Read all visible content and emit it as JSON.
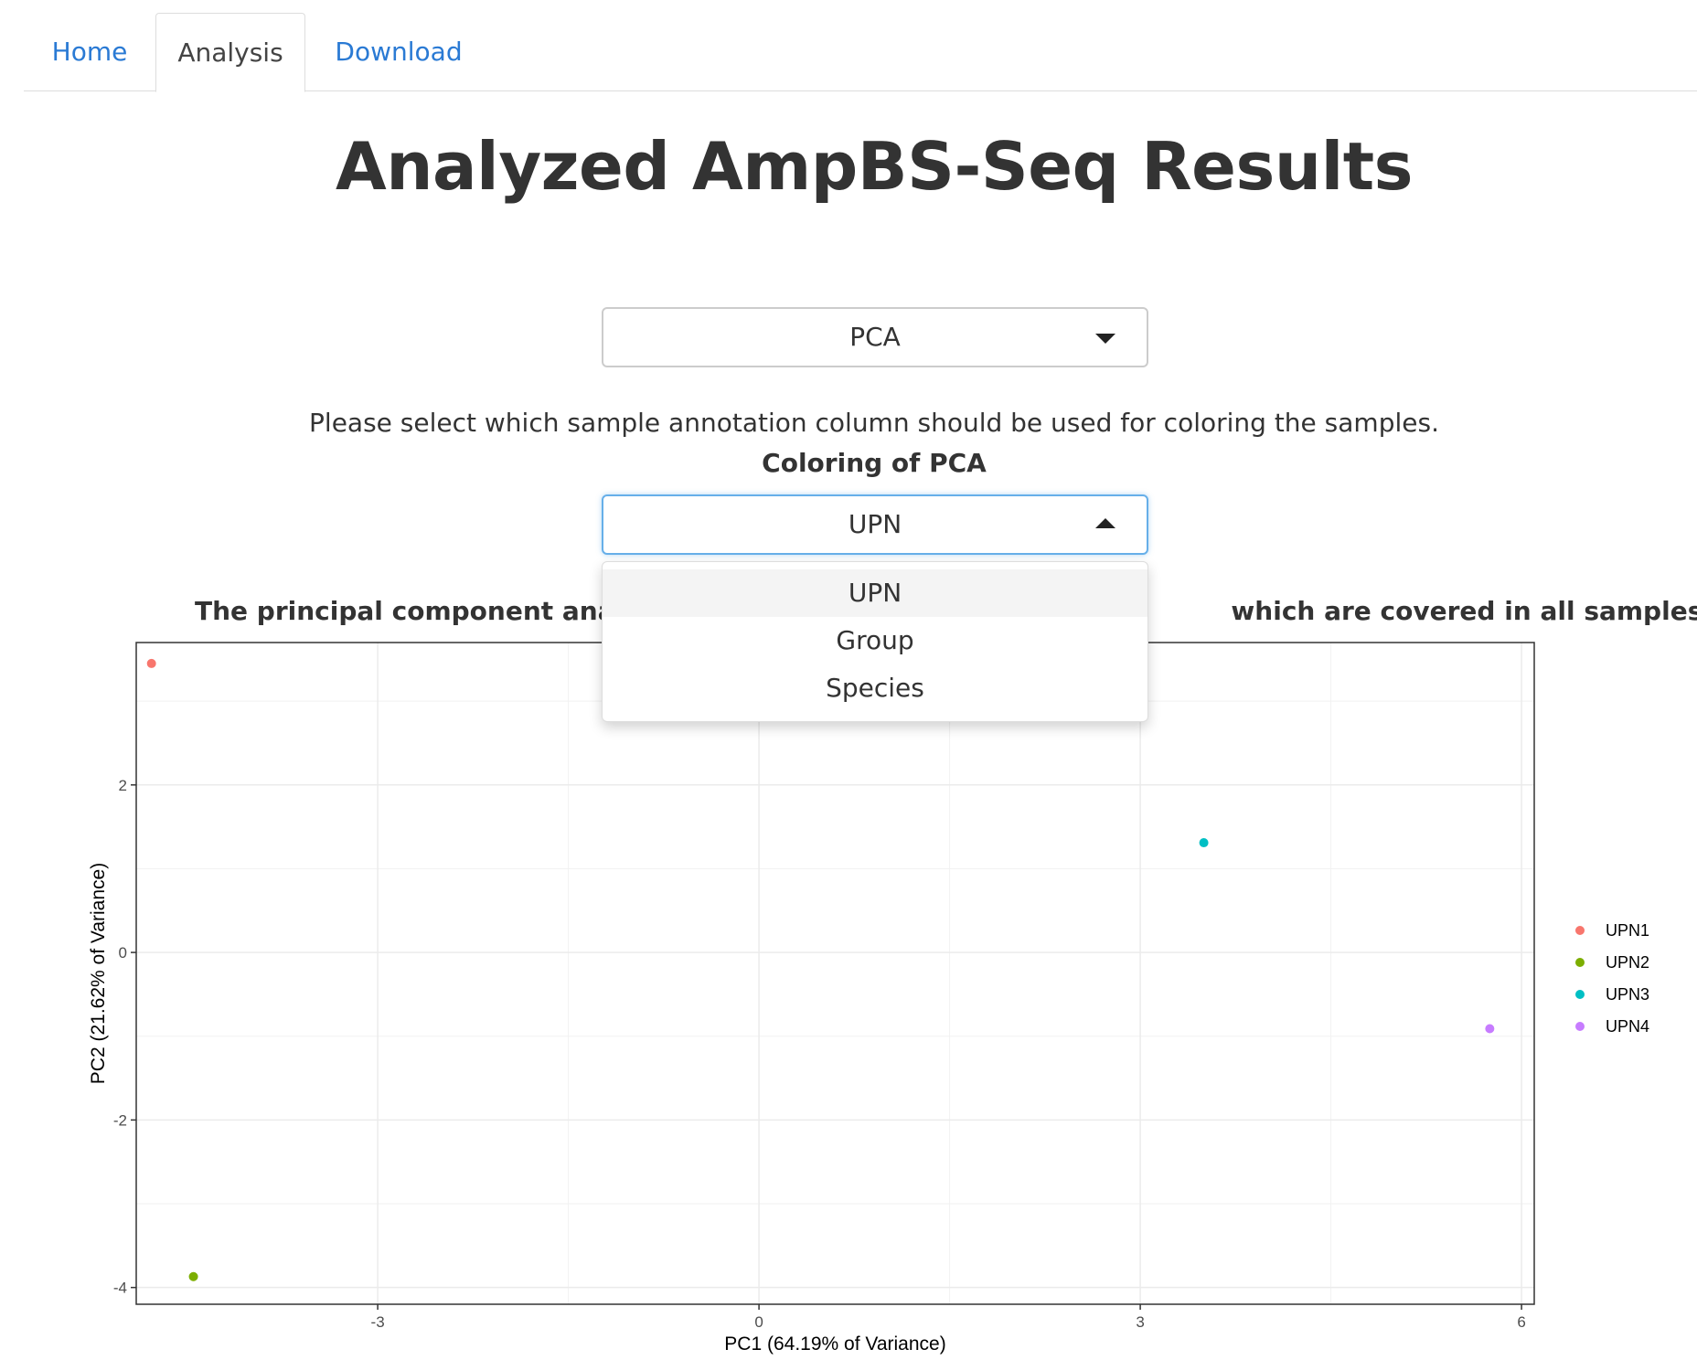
{
  "tabs": [
    {
      "label": "Home",
      "active": false
    },
    {
      "label": "Analysis",
      "active": true
    },
    {
      "label": "Download",
      "active": false
    }
  ],
  "page_title": "Analyzed AmpBS-Seq Results",
  "analysis_select": {
    "value": "PCA"
  },
  "instructions": "Please select which sample annotation column should be used for coloring the samples.",
  "coloring_label": "Coloring of PCA",
  "coloring_select": {
    "value": "UPN",
    "expanded": true,
    "options": [
      "UPN",
      "Group",
      "Species"
    ],
    "highlighted": "UPN"
  },
  "pca_caption_left": "The principal component analysis",
  "pca_caption_right": "which are covered in all samples:",
  "chart_data": {
    "type": "scatter",
    "xlabel": "PC1 (64.19% of Variance)",
    "ylabel": "PC2 (21.62% of Variance)",
    "xlim": [
      -4.9,
      6.1
    ],
    "ylim": [
      -4.2,
      3.7
    ],
    "xticks": [
      -3,
      0,
      3,
      6
    ],
    "yticks": [
      -4,
      -2,
      0,
      2
    ],
    "grid": true,
    "legend_placement": "right",
    "series": [
      {
        "name": "UPN1",
        "color": "#F8766D",
        "points": [
          {
            "x": -4.78,
            "y": 3.45
          }
        ]
      },
      {
        "name": "UPN2",
        "color": "#7CAE00",
        "points": [
          {
            "x": -4.45,
            "y": -3.87
          }
        ]
      },
      {
        "name": "UPN3",
        "color": "#00BFC4",
        "points": [
          {
            "x": 3.5,
            "y": 1.31
          }
        ]
      },
      {
        "name": "UPN4",
        "color": "#C77CFF",
        "points": [
          {
            "x": 5.75,
            "y": -0.91
          }
        ]
      }
    ]
  }
}
